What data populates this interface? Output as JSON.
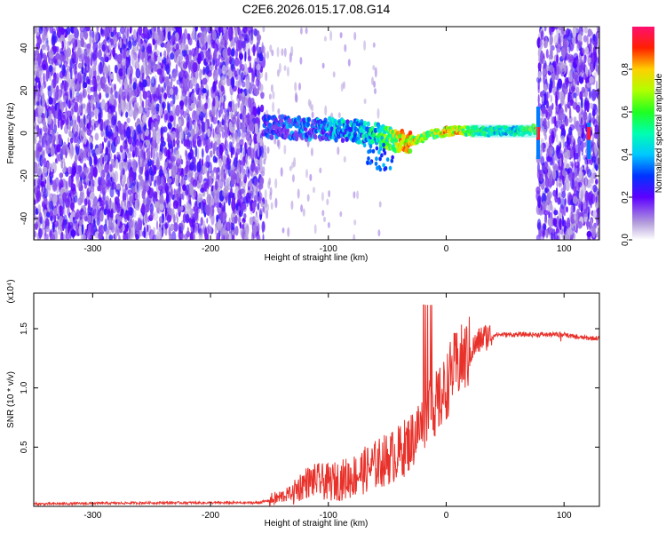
{
  "title": "C2E6.2026.015.17.08.G14",
  "chart_data": [
    {
      "type": "heatmap",
      "xlabel": "Height of straight line (km)",
      "ylabel": "Frequency (Hz)",
      "xlim": [
        -350,
        130
      ],
      "ylim": [
        -50,
        50
      ],
      "xticks": [
        -300,
        -200,
        -100,
        0,
        100
      ],
      "yticks": [
        -40,
        -20,
        0,
        20,
        40
      ],
      "colorbar": {
        "label": "Normalized spectral amplitude",
        "range": [
          0.0,
          1.0
        ],
        "ticks": [
          0.0,
          0.2,
          0.4,
          0.6,
          0.8
        ],
        "colormap": "rainbow (white/purple low → red/pink high)"
      },
      "noise_regions_x": [
        [
          -350,
          -155
        ],
        [
          78,
          130
        ]
      ],
      "signal_trace": {
        "x": [
          -155,
          -140,
          -120,
          -100,
          -80,
          -60,
          -45,
          -35,
          -25,
          -15,
          -5,
          0,
          10,
          20,
          40,
          60,
          78
        ],
        "freq": [
          3,
          3,
          2,
          2,
          1,
          0,
          -3,
          -4,
          -3,
          -1,
          0,
          1,
          1,
          1,
          1,
          1,
          2
        ],
        "amplitude": [
          0.35,
          0.4,
          0.45,
          0.5,
          0.55,
          0.6,
          0.8,
          0.95,
          0.85,
          0.75,
          0.85,
          0.95,
          0.9,
          0.7,
          0.65,
          0.6,
          0.95
        ]
      },
      "grid": false
    },
    {
      "type": "line",
      "xlabel": "Height of straight line (km)",
      "ylabel": "SNR (10 * v/v)",
      "y_multiplier": "(x10⁴)",
      "xlim": [
        -350,
        130
      ],
      "ylim": [
        0,
        1.8
      ],
      "xticks": [
        -300,
        -200,
        -100,
        0,
        100
      ],
      "yticks": [
        0.5,
        1.0,
        1.5
      ],
      "series": [
        {
          "color": "#e8312a",
          "x": [
            -350,
            -300,
            -250,
            -200,
            -160,
            -150,
            -140,
            -130,
            -120,
            -110,
            -100,
            -90,
            -80,
            -70,
            -60,
            -50,
            -40,
            -30,
            -20,
            -15,
            -10,
            -5,
            0,
            5,
            10,
            20,
            30,
            40,
            60,
            80,
            100,
            110,
            120,
            130
          ],
          "y": [
            0.02,
            0.025,
            0.03,
            0.03,
            0.03,
            0.05,
            0.08,
            0.12,
            0.2,
            0.22,
            0.2,
            0.22,
            0.25,
            0.3,
            0.35,
            0.4,
            0.45,
            0.55,
            0.7,
            0.85,
            0.85,
            0.9,
            1.0,
            1.15,
            1.2,
            1.3,
            1.42,
            1.45,
            1.45,
            1.45,
            1.45,
            1.43,
            1.42,
            1.42
          ]
        }
      ],
      "grid": false
    }
  ]
}
